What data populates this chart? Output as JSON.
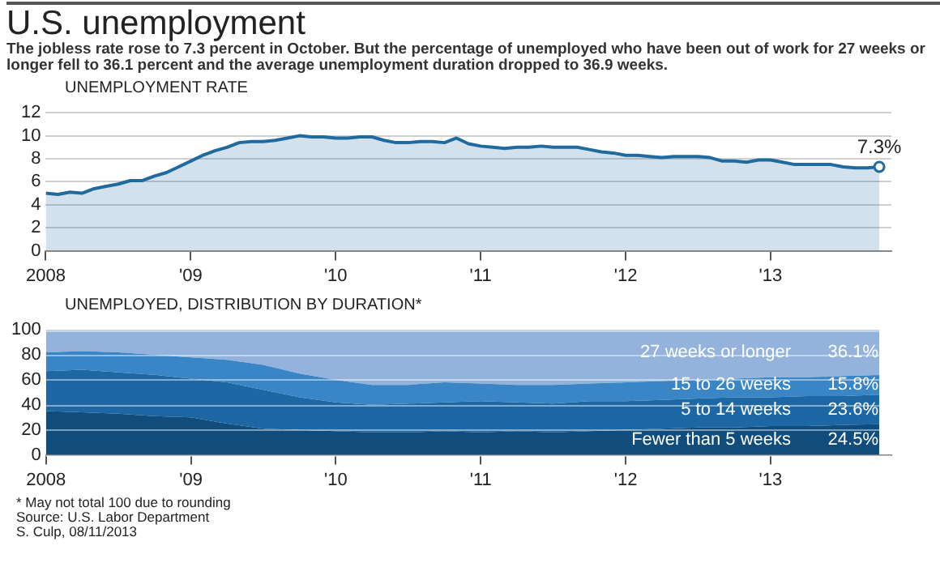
{
  "chart_data": [
    {
      "type": "area",
      "title": "U.S. unemployment",
      "subtitle": "The jobless rate rose to 7.3 percent in October. But the percentage of unemployed who have been out of work for 27 weeks or longer fell to 36.1 percent and the average unemployment duration dropped to 36.9 weeks.",
      "ylabel": "UNEMPLOYMENT RATE",
      "x": [
        "2008-01",
        "2008-02",
        "2008-03",
        "2008-04",
        "2008-05",
        "2008-06",
        "2008-07",
        "2008-08",
        "2008-09",
        "2008-10",
        "2008-11",
        "2008-12",
        "2009-01",
        "2009-02",
        "2009-03",
        "2009-04",
        "2009-05",
        "2009-06",
        "2009-07",
        "2009-08",
        "2009-09",
        "2009-10",
        "2009-11",
        "2009-12",
        "2010-01",
        "2010-02",
        "2010-03",
        "2010-04",
        "2010-05",
        "2010-06",
        "2010-07",
        "2010-08",
        "2010-09",
        "2010-10",
        "2010-11",
        "2010-12",
        "2011-01",
        "2011-02",
        "2011-03",
        "2011-04",
        "2011-05",
        "2011-06",
        "2011-07",
        "2011-08",
        "2011-09",
        "2011-10",
        "2011-11",
        "2011-12",
        "2012-01",
        "2012-02",
        "2012-03",
        "2012-04",
        "2012-05",
        "2012-06",
        "2012-07",
        "2012-08",
        "2012-09",
        "2012-10",
        "2012-11",
        "2012-12",
        "2013-01",
        "2013-02",
        "2013-03",
        "2013-04",
        "2013-05",
        "2013-06",
        "2013-07",
        "2013-08",
        "2013-09",
        "2013-10"
      ],
      "series": [
        {
          "color": "#1f6a9e",
          "values": [
            5.0,
            4.9,
            5.1,
            5.0,
            5.4,
            5.6,
            5.8,
            6.1,
            6.1,
            6.5,
            6.8,
            7.3,
            7.8,
            8.3,
            8.7,
            9.0,
            9.4,
            9.5,
            9.5,
            9.6,
            9.8,
            10.0,
            9.9,
            9.9,
            9.8,
            9.8,
            9.9,
            9.9,
            9.6,
            9.4,
            9.4,
            9.5,
            9.5,
            9.4,
            9.8,
            9.3,
            9.1,
            9.0,
            8.9,
            9.0,
            9.0,
            9.1,
            9.0,
            9.0,
            9.0,
            8.8,
            8.6,
            8.5,
            8.3,
            8.3,
            8.2,
            8.1,
            8.2,
            8.2,
            8.2,
            8.1,
            7.8,
            7.8,
            7.7,
            7.9,
            7.9,
            7.7,
            7.5,
            7.5,
            7.5,
            7.5,
            7.3,
            7.2,
            7.2,
            7.3
          ]
        }
      ],
      "xlim": [
        "2008-01",
        "2013-11"
      ],
      "xticks": [
        {
          "value": "2008",
          "label": "2008"
        },
        {
          "value": "2009",
          "label": "'09"
        },
        {
          "value": "2010",
          "label": "'10"
        },
        {
          "value": "2011",
          "label": "'11"
        },
        {
          "value": "2012",
          "label": "'12"
        },
        {
          "value": "2013",
          "label": "'13"
        }
      ],
      "ylim": [
        0,
        12
      ],
      "yticks": [
        0,
        2,
        4,
        6,
        8,
        10,
        12
      ],
      "grid": "y",
      "legend": false,
      "annotations": [
        {
          "text": "7.3%",
          "x": "2013-10",
          "y": 7.3
        }
      ]
    },
    {
      "type": "area",
      "title": "UNEMPLOYED, DISTRIBUTION BY DURATION*",
      "stacked": true,
      "x": [
        "2008-01",
        "2008-04",
        "2008-07",
        "2008-10",
        "2009-01",
        "2009-04",
        "2009-07",
        "2009-10",
        "2010-01",
        "2010-04",
        "2010-07",
        "2010-10",
        "2011-01",
        "2011-04",
        "2011-07",
        "2011-10",
        "2012-01",
        "2012-04",
        "2012-07",
        "2012-10",
        "2013-01",
        "2013-04",
        "2013-07",
        "2013-10"
      ],
      "series": [
        {
          "name": "Fewer than 5 weeks",
          "color": "#114d7c",
          "values": [
            35,
            34,
            33,
            31,
            30,
            25,
            21,
            20,
            19,
            18,
            18,
            19,
            18,
            19,
            18,
            19,
            20,
            21,
            22,
            22,
            23,
            23,
            24,
            24.5
          ],
          "value_labels": [
            null,
            null,
            null,
            null,
            null,
            null,
            null,
            null,
            null,
            null,
            null,
            null,
            null,
            null,
            null,
            null,
            null,
            null,
            null,
            null,
            null,
            null,
            null,
            "24.5%"
          ]
        },
        {
          "name": "5 to 14 weeks",
          "color": "#1d68a4",
          "values": [
            32,
            34,
            33,
            33,
            31,
            33,
            31,
            26,
            23,
            22,
            23,
            23,
            25,
            23,
            23,
            24,
            23,
            23,
            23,
            24,
            23,
            24,
            23,
            23.6
          ],
          "value_labels": [
            null,
            null,
            null,
            null,
            null,
            null,
            null,
            null,
            null,
            null,
            null,
            null,
            null,
            null,
            null,
            null,
            null,
            null,
            null,
            null,
            null,
            null,
            null,
            "23.6%"
          ]
        },
        {
          "name": "15 to 26 weeks",
          "color": "#3a85c6",
          "values": [
            15,
            15,
            16,
            16,
            17,
            18,
            20,
            19,
            18,
            16,
            15,
            16,
            14,
            14,
            15,
            14,
            15,
            15,
            15,
            15,
            16,
            15,
            16,
            15.8
          ],
          "value_labels": [
            null,
            null,
            null,
            null,
            null,
            null,
            null,
            null,
            null,
            null,
            null,
            null,
            null,
            null,
            null,
            null,
            null,
            null,
            null,
            null,
            null,
            null,
            null,
            "15.8%"
          ]
        },
        {
          "name": "27 weeks or longer",
          "color": "#93b3dc",
          "values": [
            18,
            17,
            18,
            20,
            22,
            24,
            28,
            35,
            40,
            44,
            44,
            42,
            43,
            44,
            44,
            43,
            42,
            41,
            40,
            39,
            38,
            38,
            37,
            36.1
          ],
          "value_labels": [
            null,
            null,
            null,
            null,
            null,
            null,
            null,
            null,
            null,
            null,
            null,
            null,
            null,
            null,
            null,
            null,
            null,
            null,
            null,
            null,
            null,
            null,
            null,
            "36.1%"
          ]
        }
      ],
      "xlim": [
        "2008-01",
        "2013-11"
      ],
      "xticks": [
        {
          "value": "2008",
          "label": "2008"
        },
        {
          "value": "2009",
          "label": "'09"
        },
        {
          "value": "2010",
          "label": "'10"
        },
        {
          "value": "2011",
          "label": "'11"
        },
        {
          "value": "2012",
          "label": "'12"
        },
        {
          "value": "2013",
          "label": "'13"
        }
      ],
      "ylim": [
        0,
        100
      ],
      "yticks": [
        0,
        20,
        40,
        60,
        80,
        100
      ],
      "grid": "y",
      "legend": false,
      "annotations": [
        "* May not total 100 due to rounding",
        "Source: U.S. Labor Department",
        "S. Culp, 08/11/2013"
      ]
    }
  ]
}
